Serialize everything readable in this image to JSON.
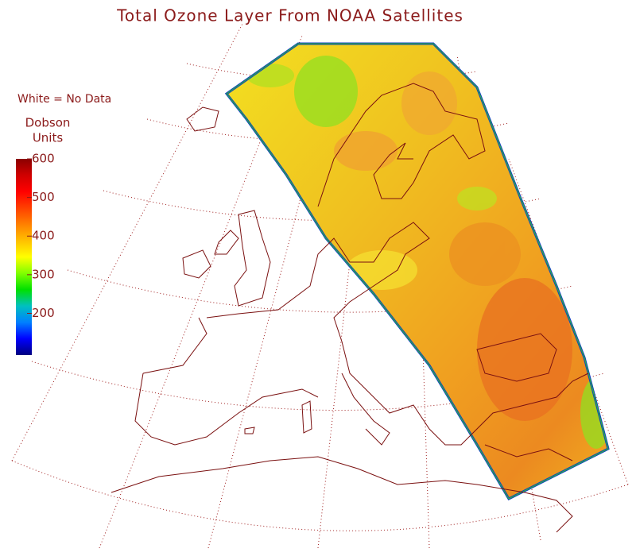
{
  "title": "Total Ozone Layer From NOAA Satellites",
  "note": "White = No Data",
  "colorbar": {
    "label_lines": [
      "Dobson",
      "Units"
    ],
    "lim": [
      92,
      600
    ],
    "ticks": [
      200,
      300,
      400,
      500,
      600
    ],
    "colors": [
      "#000080",
      "#0000ff",
      "#0080ff",
      "#00c0c0",
      "#00e000",
      "#80ff00",
      "#ffff00",
      "#ffc000",
      "#ff8000",
      "#ff4000",
      "#ff0000",
      "#d00000",
      "#8b0000"
    ]
  }
}
